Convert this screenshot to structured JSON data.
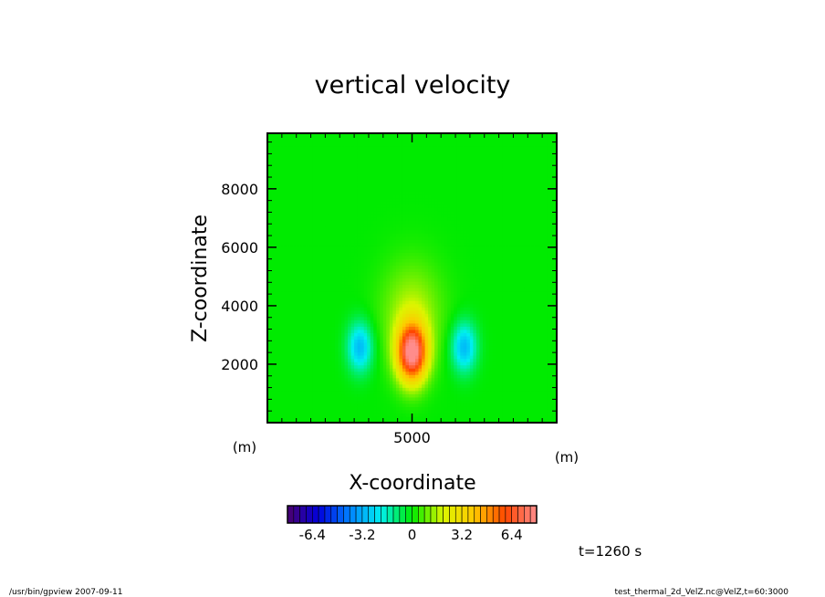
{
  "chart_data": {
    "type": "heatmap",
    "title": "vertical velocity",
    "xlabel": "X-coordinate",
    "ylabel": "Z-coordinate",
    "x_unit": "(m)",
    "y_unit": "(m)",
    "xlim": [
      0,
      10000
    ],
    "ylim": [
      0,
      9900
    ],
    "x_ticks": [
      5000
    ],
    "y_ticks": [
      2000,
      4000,
      6000,
      8000
    ],
    "colorbar": {
      "min": -8,
      "max": 8,
      "ticks": [
        -6.4,
        -3.2,
        0,
        3.2,
        6.4
      ],
      "tick_labels": [
        "-6.4",
        "-3.2",
        "0",
        "3.2",
        "6.4"
      ]
    },
    "features": [
      {
        "kind": "updraft",
        "x": 5000,
        "z": 2400,
        "value": 8
      },
      {
        "kind": "downdraft",
        "x": 3200,
        "z": 2600,
        "value": -3
      },
      {
        "kind": "downdraft",
        "x": 6800,
        "z": 2600,
        "value": -3
      }
    ],
    "time_label": "t=1260 s"
  },
  "footer": {
    "left": "/usr/bin/gpview   2007-09-11",
    "right": "test_thermal_2d_VelZ.nc@VelZ,t=60:3000"
  }
}
